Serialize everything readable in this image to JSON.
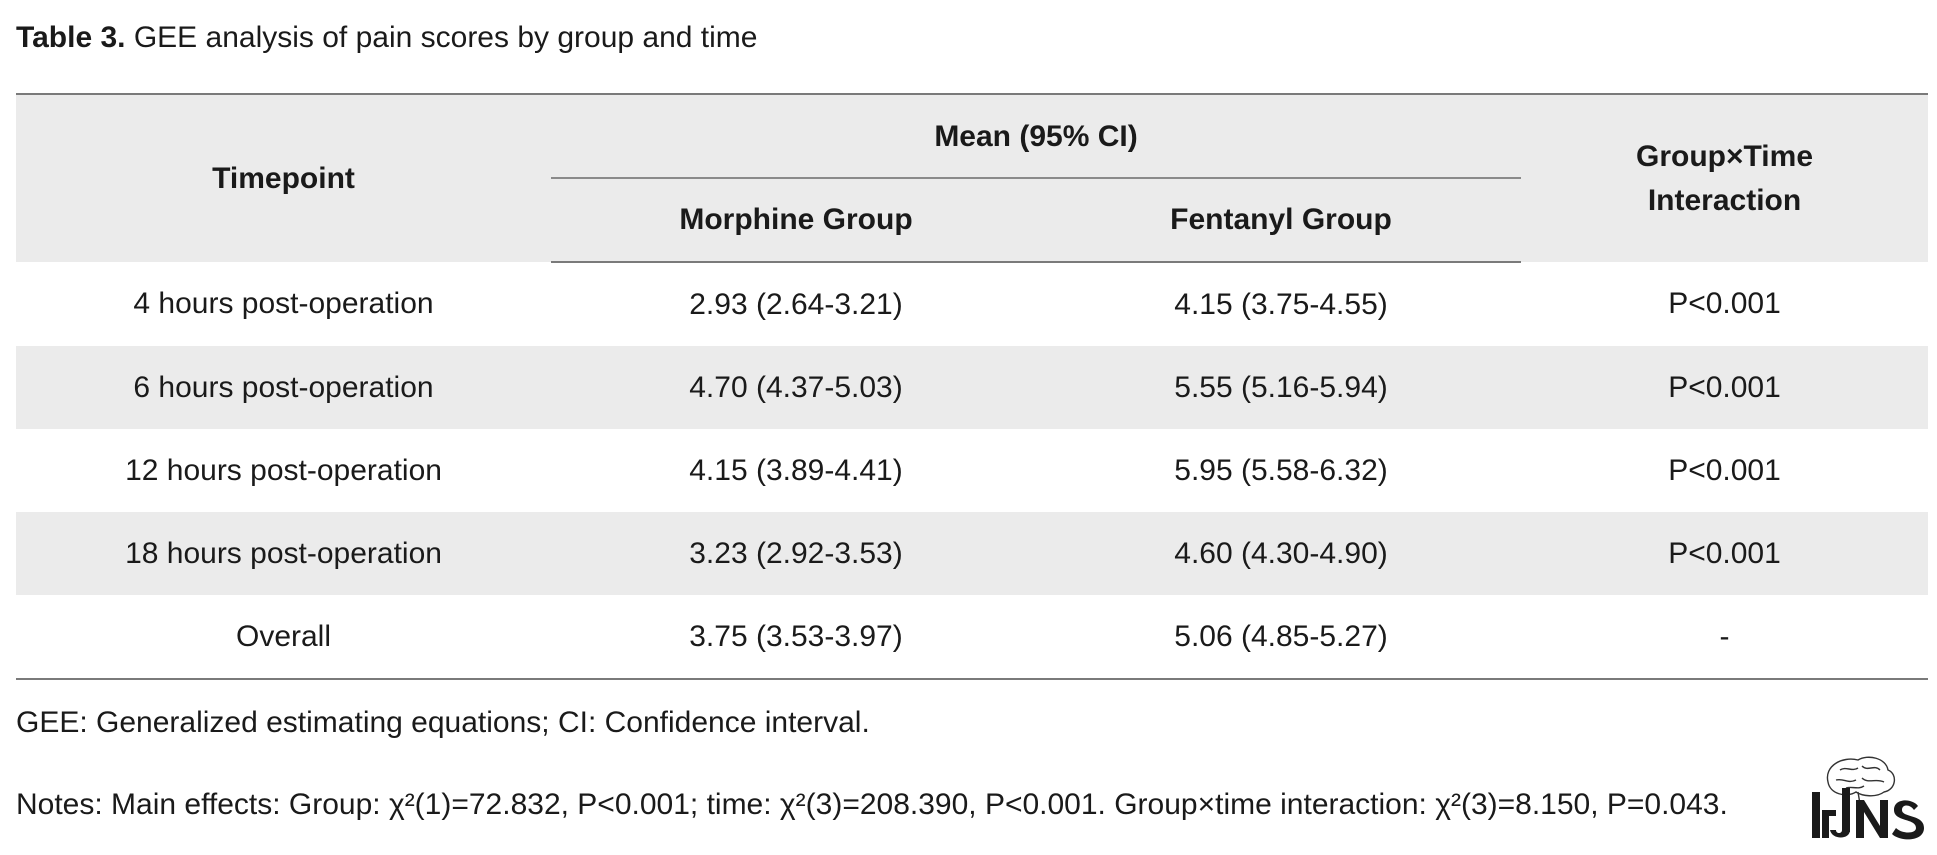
{
  "caption": {
    "label": "Table 3.",
    "text": " GEE analysis of pain scores by group and time"
  },
  "table": {
    "headers": {
      "timepoint": "Timepoint",
      "mean_group": "Mean (95% CI)",
      "morphine": "Morphine Group",
      "fentanyl": "Fentanyl Group",
      "interaction_line1": "Group×Time",
      "interaction_line2": "Interaction"
    },
    "rows": [
      {
        "timepoint": "4 hours post-operation",
        "morphine": "2.93 (2.64-3.21)",
        "fentanyl": "4.15 (3.75-4.55)",
        "interaction": "P<0.001"
      },
      {
        "timepoint": "6 hours post-operation",
        "morphine": "4.70 (4.37-5.03)",
        "fentanyl": "5.55 (5.16-5.94)",
        "interaction": "P<0.001"
      },
      {
        "timepoint": "12 hours post-operation",
        "morphine": "4.15 (3.89-4.41)",
        "fentanyl": "5.95 (5.58-6.32)",
        "interaction": "P<0.001"
      },
      {
        "timepoint": "18 hours post-operation",
        "morphine": "3.23 (2.92-3.53)",
        "fentanyl": "4.60 (4.30-4.90)",
        "interaction": "P<0.001"
      },
      {
        "timepoint": "Overall",
        "morphine": "3.75 (3.53-3.97)",
        "fentanyl": "5.06 (4.85-5.27)",
        "interaction": "-"
      }
    ]
  },
  "footnotes": {
    "abbreviations": "GEE: Generalized estimating equations; CI: Confidence interval.",
    "notes": "Notes: Main effects: Group: χ²(1)=72.832, P<0.001; time: χ²(3)=208.390, P<0.001. Group×time interaction: χ²(3)=8.150, P=0.043."
  },
  "logo": {
    "icon": "journal-logo-icon",
    "text": "IrJNS"
  },
  "colors": {
    "header_shade": "#ebebeb",
    "row_shade": "#ebebeb",
    "rule": "#7a7a7a",
    "text": "#1a1a1a"
  }
}
